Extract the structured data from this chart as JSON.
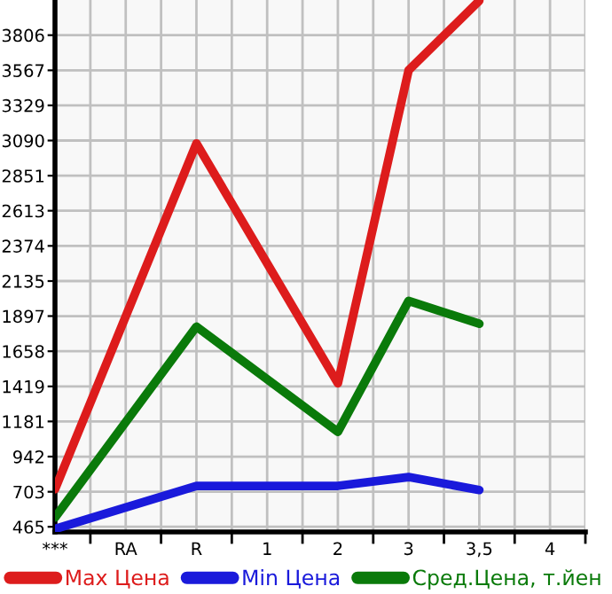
{
  "chart_data": {
    "type": "line",
    "categories": [
      "***",
      "RA",
      "R",
      "1",
      "2",
      "3",
      "3,5",
      "4"
    ],
    "series": [
      {
        "name": "Max Цена",
        "color": "#dd1c1c",
        "values": [
          720,
          null,
          3070,
          null,
          1440,
          3567,
          4040,
          null
        ]
      },
      {
        "name": "Min Цена",
        "color": "#1a1adb",
        "values": [
          450,
          null,
          743,
          null,
          743,
          803,
          715,
          null
        ]
      },
      {
        "name": "Сред.Цена, т.йен",
        "color": "#0a7a0a",
        "values": [
          528,
          null,
          1825,
          null,
          1110,
          2000,
          1845,
          null
        ]
      }
    ],
    "ylim": [
      430,
      4045
    ],
    "yticks": [
      465,
      703,
      942,
      1181,
      1419,
      1658,
      1897,
      2135,
      2374,
      2613,
      2851,
      3090,
      3329,
      3567,
      3806
    ],
    "grid": true,
    "legend": "bottom",
    "marker": "none",
    "line_style": "solid"
  }
}
